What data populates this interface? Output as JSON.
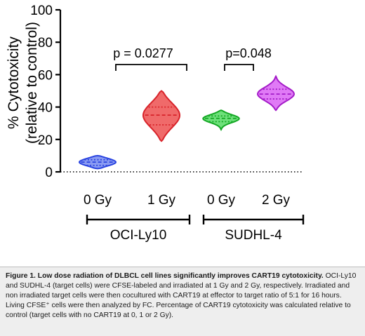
{
  "chart_data": {
    "type": "violin",
    "ylabel_line1": "% Cytotoxicity",
    "ylabel_line2": "(relative to control)",
    "ylim": [
      0,
      100
    ],
    "yticks": [
      0,
      20,
      40,
      60,
      80,
      100
    ],
    "categories": [
      "0 Gy",
      "1 Gy",
      "0 Gy",
      "2 Gy"
    ],
    "groups": [
      {
        "name": "OCI-Ly10",
        "categories": [
          0,
          1
        ]
      },
      {
        "name": "SUDHL-4",
        "categories": [
          2,
          3
        ]
      }
    ],
    "series": [
      {
        "category": "0 Gy",
        "group": "OCI-Ly10",
        "color": "#2a44e0",
        "fill": "#8a9bf2",
        "min": 2,
        "q1": 4,
        "median": 6,
        "q3": 7.5,
        "max": 10
      },
      {
        "category": "1 Gy",
        "group": "OCI-Ly10",
        "color": "#d8232a",
        "fill": "#f06a6a",
        "min": 19,
        "q1": 29,
        "median": 35,
        "q3": 40,
        "max": 50
      },
      {
        "category": "0 Gy",
        "group": "SUDHL-4",
        "color": "#14a824",
        "fill": "#6ee07a",
        "min": 26,
        "q1": 31,
        "median": 33,
        "q3": 34.5,
        "max": 38
      },
      {
        "category": "2 Gy",
        "group": "SUDHL-4",
        "color": "#a41cc8",
        "fill": "#e07af6",
        "min": 38,
        "q1": 45,
        "median": 48,
        "q3": 51,
        "max": 59
      }
    ],
    "annotations": [
      {
        "text": "p = 0.0277",
        "between": [
          0,
          1
        ]
      },
      {
        "text": "p=0.048",
        "between": [
          2,
          3
        ]
      }
    ],
    "reference_line": 0
  },
  "caption": {
    "bold": "Figure 1. Low dose radiation of DLBCL cell lines significantly improves CART19 cytotoxicity.",
    "text": " OCI-Ly10 and SUDHL-4 (target cells) were CFSE-labeled and irradiated at 1 Gy and 2 Gy, respectively. Irradiated and non irradiated target cells were then cocultured with CART19 at effector to target ratio of 5:1 for 16 hours. Living CFSE⁺ cells were then analyzed by FC. Percentage of CART19 cytotoxicity was calculated relative to control (target cells with no CART19 at 0, 1 or 2 Gy)."
  }
}
